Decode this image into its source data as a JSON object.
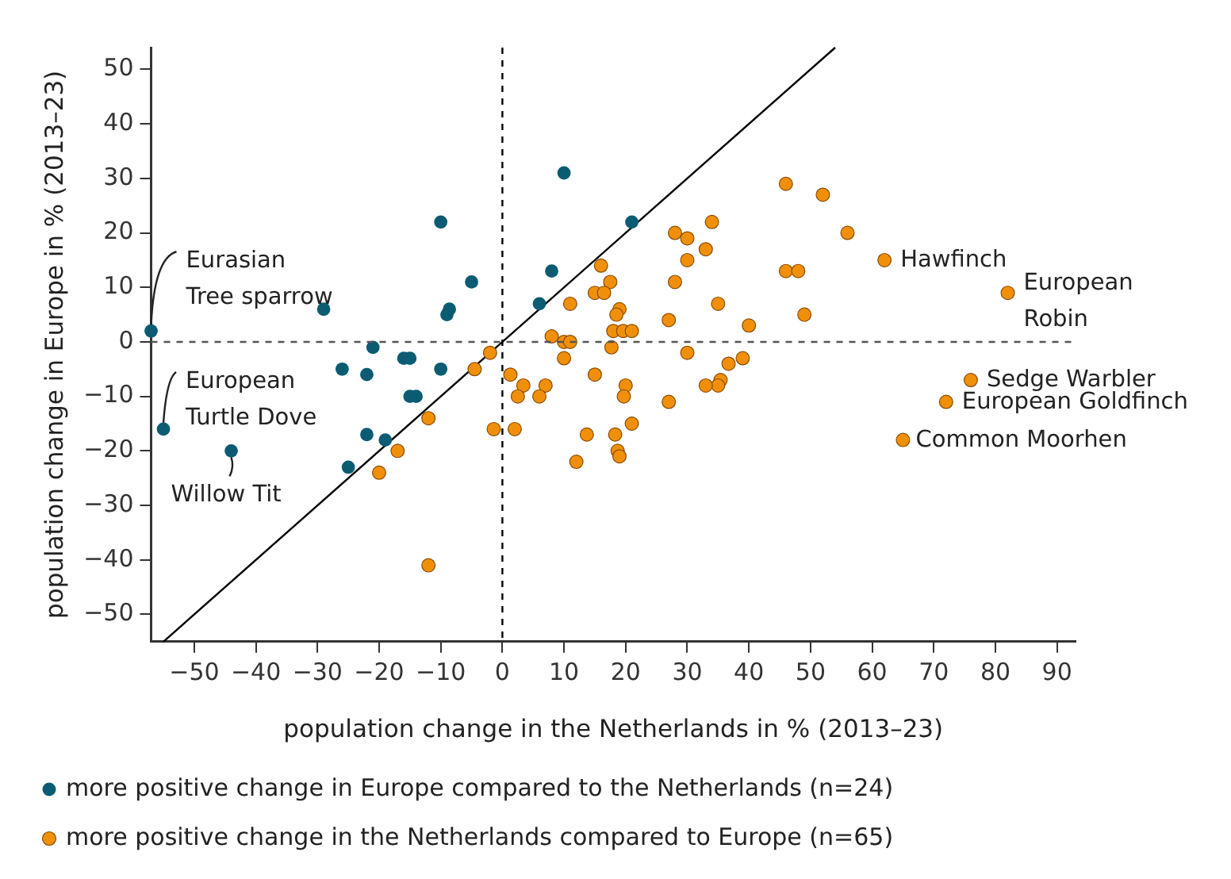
{
  "chart_data": {
    "type": "scatter",
    "xlabel": "population change in the Netherlands in % (2013–23)",
    "ylabel": "population change in Europe in % (2013–23)",
    "xlim": [
      -57,
      93
    ],
    "ylim": [
      -55,
      54
    ],
    "xticks": [
      {
        "value": -50,
        "label": "−50"
      },
      {
        "value": -40,
        "label": "−40"
      },
      {
        "value": -30,
        "label": "−30"
      },
      {
        "value": -20,
        "label": "−20"
      },
      {
        "value": -10,
        "label": "−10"
      },
      0,
      10,
      20,
      30,
      40,
      50,
      60,
      70,
      80,
      90
    ],
    "yticks": [
      {
        "value": -50,
        "label": "−50"
      },
      {
        "value": -40,
        "label": "−40"
      },
      {
        "value": -30,
        "label": "−30"
      },
      {
        "value": -20,
        "label": "−20"
      },
      {
        "value": -10,
        "label": "−10"
      },
      0,
      10,
      20,
      30,
      40,
      50
    ],
    "grid": false,
    "legend": "bottom",
    "marker": "circle",
    "series": [
      {
        "name": "more positive change in Europe compared to the Netherlands (n=24)",
        "color": "#0b5c73",
        "x": [
          -57,
          -55,
          -44,
          -29,
          -26,
          -22,
          -21,
          -16,
          -15,
          -15,
          -14,
          -22,
          -19,
          -25,
          -10,
          -10,
          -5,
          -8.6,
          -9,
          10,
          21,
          8,
          6
        ],
        "values": [
          2,
          -16,
          -20,
          6,
          -5,
          -6,
          -1,
          -3,
          -3,
          -10,
          -10,
          -17,
          -18,
          -23,
          22,
          -5,
          11,
          6,
          5,
          31,
          22,
          13,
          7
        ]
      },
      {
        "name": "more positive change in the Netherlands compared to Europe (n=65)",
        "color": "#f0900a",
        "x": [
          -2,
          -4.5,
          -12,
          -17,
          -20,
          -12,
          -1.4,
          1.3,
          3.4,
          2.5,
          2,
          46,
          52,
          56,
          34,
          28,
          30,
          33,
          30,
          46,
          48,
          16,
          17.5,
          15,
          16.5,
          28,
          11,
          35,
          19,
          18.5,
          27,
          49,
          40,
          18,
          19.6,
          21,
          8,
          10,
          11,
          17.7,
          10,
          30,
          36.7,
          39,
          35.4,
          35,
          33,
          7,
          6,
          15,
          20,
          19.7,
          27,
          21,
          13.7,
          18.3,
          18.7,
          19,
          12,
          62,
          82,
          76,
          72,
          65
        ],
        "values": [
          -2,
          -5,
          -14,
          -20,
          -24,
          -41,
          -16,
          -6,
          -8,
          -10,
          -16,
          29,
          27,
          20,
          22,
          20,
          19,
          17,
          15,
          13,
          13,
          14,
          11,
          9,
          9,
          11,
          7,
          7,
          6,
          5,
          4,
          5,
          3,
          2,
          2,
          2,
          1,
          0,
          0,
          -1,
          -3,
          -2,
          -4,
          -3,
          -7,
          -8,
          -8,
          -8,
          -10,
          -6,
          -8,
          -10,
          -11,
          -15,
          -17,
          -17,
          -20,
          -21,
          -22,
          15,
          9,
          -7,
          -11,
          -18
        ]
      },
      {
        "type": "line",
        "color": "#000000",
        "x": [
          -55,
          54
        ],
        "values": [
          -55,
          54
        ],
        "marker": "none"
      }
    ],
    "ref_lines": [
      {
        "axis": "x",
        "value": 0,
        "line_style": "dashed",
        "color": "#000000"
      },
      {
        "axis": "y",
        "value": 0,
        "line_style": "dashed",
        "color": "#555555"
      }
    ],
    "annotations": [
      {
        "text": "Eurasian\nTree sparrow",
        "x": -57,
        "y": 2
      },
      {
        "text": "European\nTurtle Dove",
        "x": -55,
        "y": -16
      },
      {
        "text": "Willow Tit",
        "x": -44,
        "y": -20
      },
      {
        "text": "Hawfinch",
        "x": 62,
        "y": 15
      },
      {
        "text": "European\nRobin",
        "x": 82,
        "y": 9
      },
      {
        "text": "Sedge Warbler",
        "x": 76,
        "y": -7
      },
      {
        "text": "European Goldfinch",
        "x": 72,
        "y": -11
      },
      {
        "text": "Common Moorhen",
        "x": 65,
        "y": -18
      }
    ]
  }
}
